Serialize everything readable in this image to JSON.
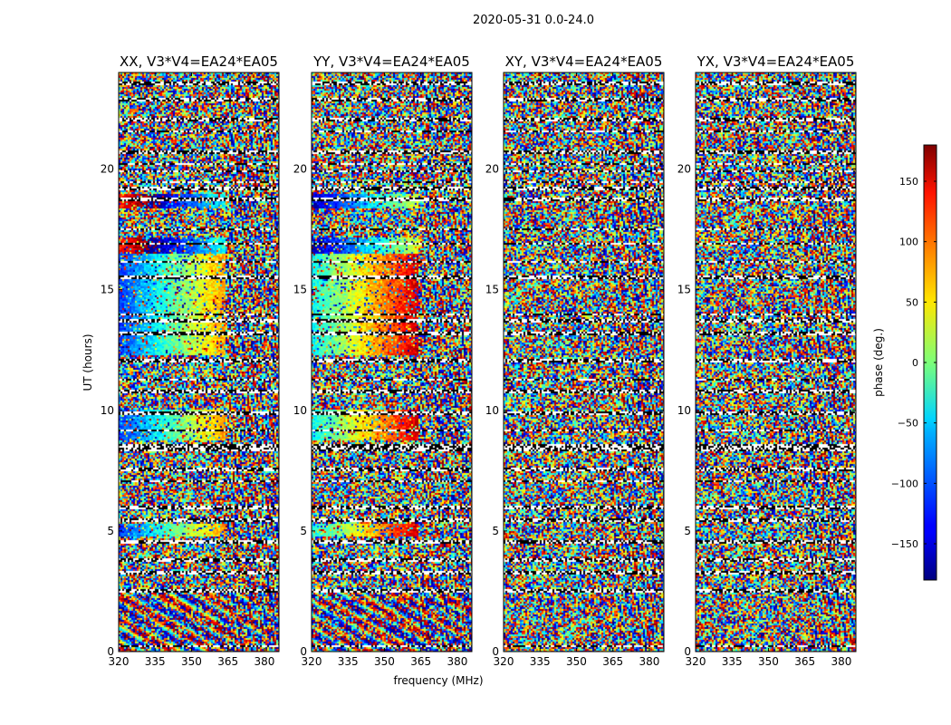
{
  "chart_data": {
    "type": "heatmap",
    "suptitle": "2020-05-31 0.0-24.0",
    "xlabel": "frequency (MHz)",
    "ylabel": "UT (hours)",
    "xlim": [
      320,
      386
    ],
    "ylim": [
      0,
      24
    ],
    "x_ticks": [
      "320",
      "335",
      "350",
      "365",
      "380"
    ],
    "y_ticks": [
      "0",
      "5",
      "10",
      "15",
      "20"
    ],
    "panels": [
      {
        "title": "XX, V3*V4=EA24*EA05",
        "coherent": true,
        "hue_offset": 0
      },
      {
        "title": "YY, V3*V4=EA24*EA05",
        "coherent": true,
        "hue_offset": 0.2
      },
      {
        "title": "XY, V3*V4=EA24*EA05",
        "coherent": false,
        "hue_offset": 0
      },
      {
        "title": "YX, V3*V4=EA24*EA05",
        "coherent": false,
        "hue_offset": 0
      }
    ],
    "flagged_hours": [
      0.25,
      2.55,
      3.3,
      3.85,
      4.6,
      5.5,
      6.0,
      7.1,
      7.6,
      8.4,
      8.55,
      9.2,
      9.9,
      10.8,
      11.3,
      12.1,
      13.2,
      13.75,
      14.0,
      15.55,
      16.2,
      16.95,
      17.55,
      18.8,
      19.25,
      19.5,
      19.95,
      20.25,
      20.75,
      21.6,
      22.1,
      22.9,
      23.6
    ],
    "colorbar": {
      "label": "phase (deg.)",
      "range": [
        -180,
        180
      ],
      "ticks": [
        "150",
        "100",
        "50",
        "0",
        "−50",
        "−100",
        "−150"
      ],
      "tick_values": [
        150,
        100,
        50,
        0,
        -50,
        -100,
        -150
      ],
      "colormap": "jet"
    }
  }
}
